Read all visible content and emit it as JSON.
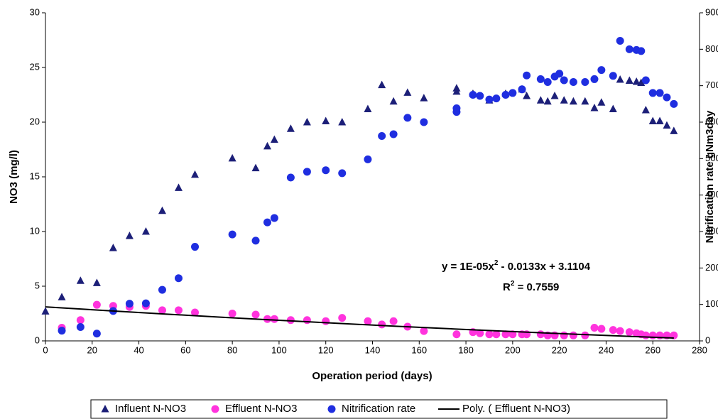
{
  "chart_data": {
    "type": "scatter",
    "xlabel": "Operation period (days)",
    "ylabel": "NO3  (mg/l)",
    "y2label": "Nitrification rate gNm3day",
    "xlim": [
      0,
      280
    ],
    "xticks": [
      0,
      20,
      40,
      60,
      80,
      100,
      120,
      140,
      160,
      180,
      200,
      220,
      240,
      260,
      280
    ],
    "ylim": [
      0,
      30
    ],
    "yticks": [
      0,
      5,
      10,
      15,
      20,
      25,
      30
    ],
    "y2lim": [
      0,
      900
    ],
    "y2ticks": [
      0,
      100,
      200,
      300,
      400,
      500,
      600,
      700,
      800,
      900
    ],
    "legend": "bottom",
    "annotation": {
      "line1": [
        "y = 1E-05x",
        "2",
        " - 0.0133x + 3.1104"
      ],
      "line2": [
        "R",
        "2",
        " = 0.7559"
      ]
    },
    "series": [
      {
        "name": "Influent  N-NO3",
        "color": "#1c1f78",
        "marker": "triangle",
        "x": [
          0,
          7,
          15,
          22,
          29,
          36,
          43,
          50,
          57,
          64,
          80,
          90,
          95,
          98,
          105,
          112,
          120,
          127,
          138,
          144,
          149,
          155,
          162,
          176,
          176,
          183,
          190,
          197,
          204,
          206,
          212,
          215,
          218,
          222,
          226,
          231,
          235,
          238,
          243,
          246,
          250,
          253,
          255,
          257,
          260,
          263,
          266,
          269
        ],
        "values": [
          2.7,
          4.0,
          5.5,
          5.3,
          8.5,
          9.6,
          10.0,
          11.9,
          14.0,
          15.2,
          16.7,
          15.8,
          17.8,
          18.4,
          19.4,
          20.0,
          20.1,
          20.0,
          21.2,
          23.4,
          21.9,
          22.7,
          22.2,
          23.1,
          22.8,
          22.6,
          22.0,
          22.6,
          23.0,
          22.4,
          22.0,
          21.9,
          22.4,
          22.0,
          21.9,
          21.9,
          21.3,
          21.8,
          21.2,
          23.9,
          23.8,
          23.7,
          23.6,
          21.1,
          20.1,
          20.1,
          19.7,
          19.2
        ]
      },
      {
        "name": "Effluent N-NO3",
        "color": "#ff33dd",
        "marker": "circle",
        "x": [
          7,
          15,
          22,
          29,
          36,
          43,
          50,
          57,
          64,
          80,
          90,
          95,
          98,
          105,
          112,
          120,
          127,
          138,
          144,
          149,
          155,
          162,
          176,
          183,
          186,
          190,
          193,
          197,
          200,
          204,
          206,
          212,
          215,
          218,
          222,
          226,
          231,
          235,
          238,
          243,
          246,
          250,
          253,
          255,
          257,
          260,
          263,
          266,
          269
        ],
        "values": [
          1.2,
          1.9,
          3.3,
          3.2,
          3.1,
          3.2,
          2.8,
          2.8,
          2.6,
          2.5,
          2.4,
          2.0,
          2.0,
          1.9,
          1.9,
          1.8,
          2.1,
          1.8,
          1.5,
          1.8,
          1.3,
          0.9,
          0.6,
          0.8,
          0.7,
          0.6,
          0.6,
          0.6,
          0.6,
          0.6,
          0.6,
          0.6,
          0.5,
          0.5,
          0.5,
          0.5,
          0.5,
          1.2,
          1.1,
          1.0,
          0.9,
          0.8,
          0.7,
          0.6,
          0.5,
          0.5,
          0.5,
          0.5,
          0.5
        ]
      },
      {
        "name": "Nitrification rate",
        "color": "#1f2ee0",
        "marker": "circle",
        "axis": "y2",
        "x": [
          7,
          15,
          22,
          29,
          36,
          43,
          50,
          57,
          64,
          80,
          90,
          95,
          98,
          105,
          112,
          120,
          127,
          138,
          144,
          149,
          155,
          162,
          176,
          176,
          183,
          186,
          190,
          193,
          197,
          200,
          204,
          206,
          212,
          215,
          218,
          220,
          222,
          226,
          231,
          235,
          238,
          243,
          246,
          250,
          253,
          255,
          257,
          260,
          263,
          266,
          269
        ],
        "values": [
          28,
          38,
          20,
          82,
          102,
          103,
          140,
          172,
          258,
          292,
          275,
          325,
          337,
          448,
          464,
          468,
          460,
          498,
          562,
          567,
          612,
          600,
          628,
          638,
          675,
          672,
          662,
          665,
          675,
          680,
          690,
          728,
          718,
          710,
          725,
          733,
          715,
          710,
          710,
          718,
          743,
          727,
          823,
          800,
          798,
          795,
          715,
          680,
          680,
          668,
          650
        ]
      },
      {
        "name": "Poly. ( Effluent N-NO3)",
        "color": "#000000",
        "marker": "line",
        "x": [
          0,
          25,
          50,
          75,
          100,
          125,
          150,
          175,
          200,
          225,
          250,
          269
        ],
        "values": [
          3.11,
          2.784,
          2.47,
          2.169,
          1.88,
          1.604,
          1.34,
          1.089,
          0.85,
          0.624,
          0.41,
          0.256
        ]
      }
    ]
  }
}
